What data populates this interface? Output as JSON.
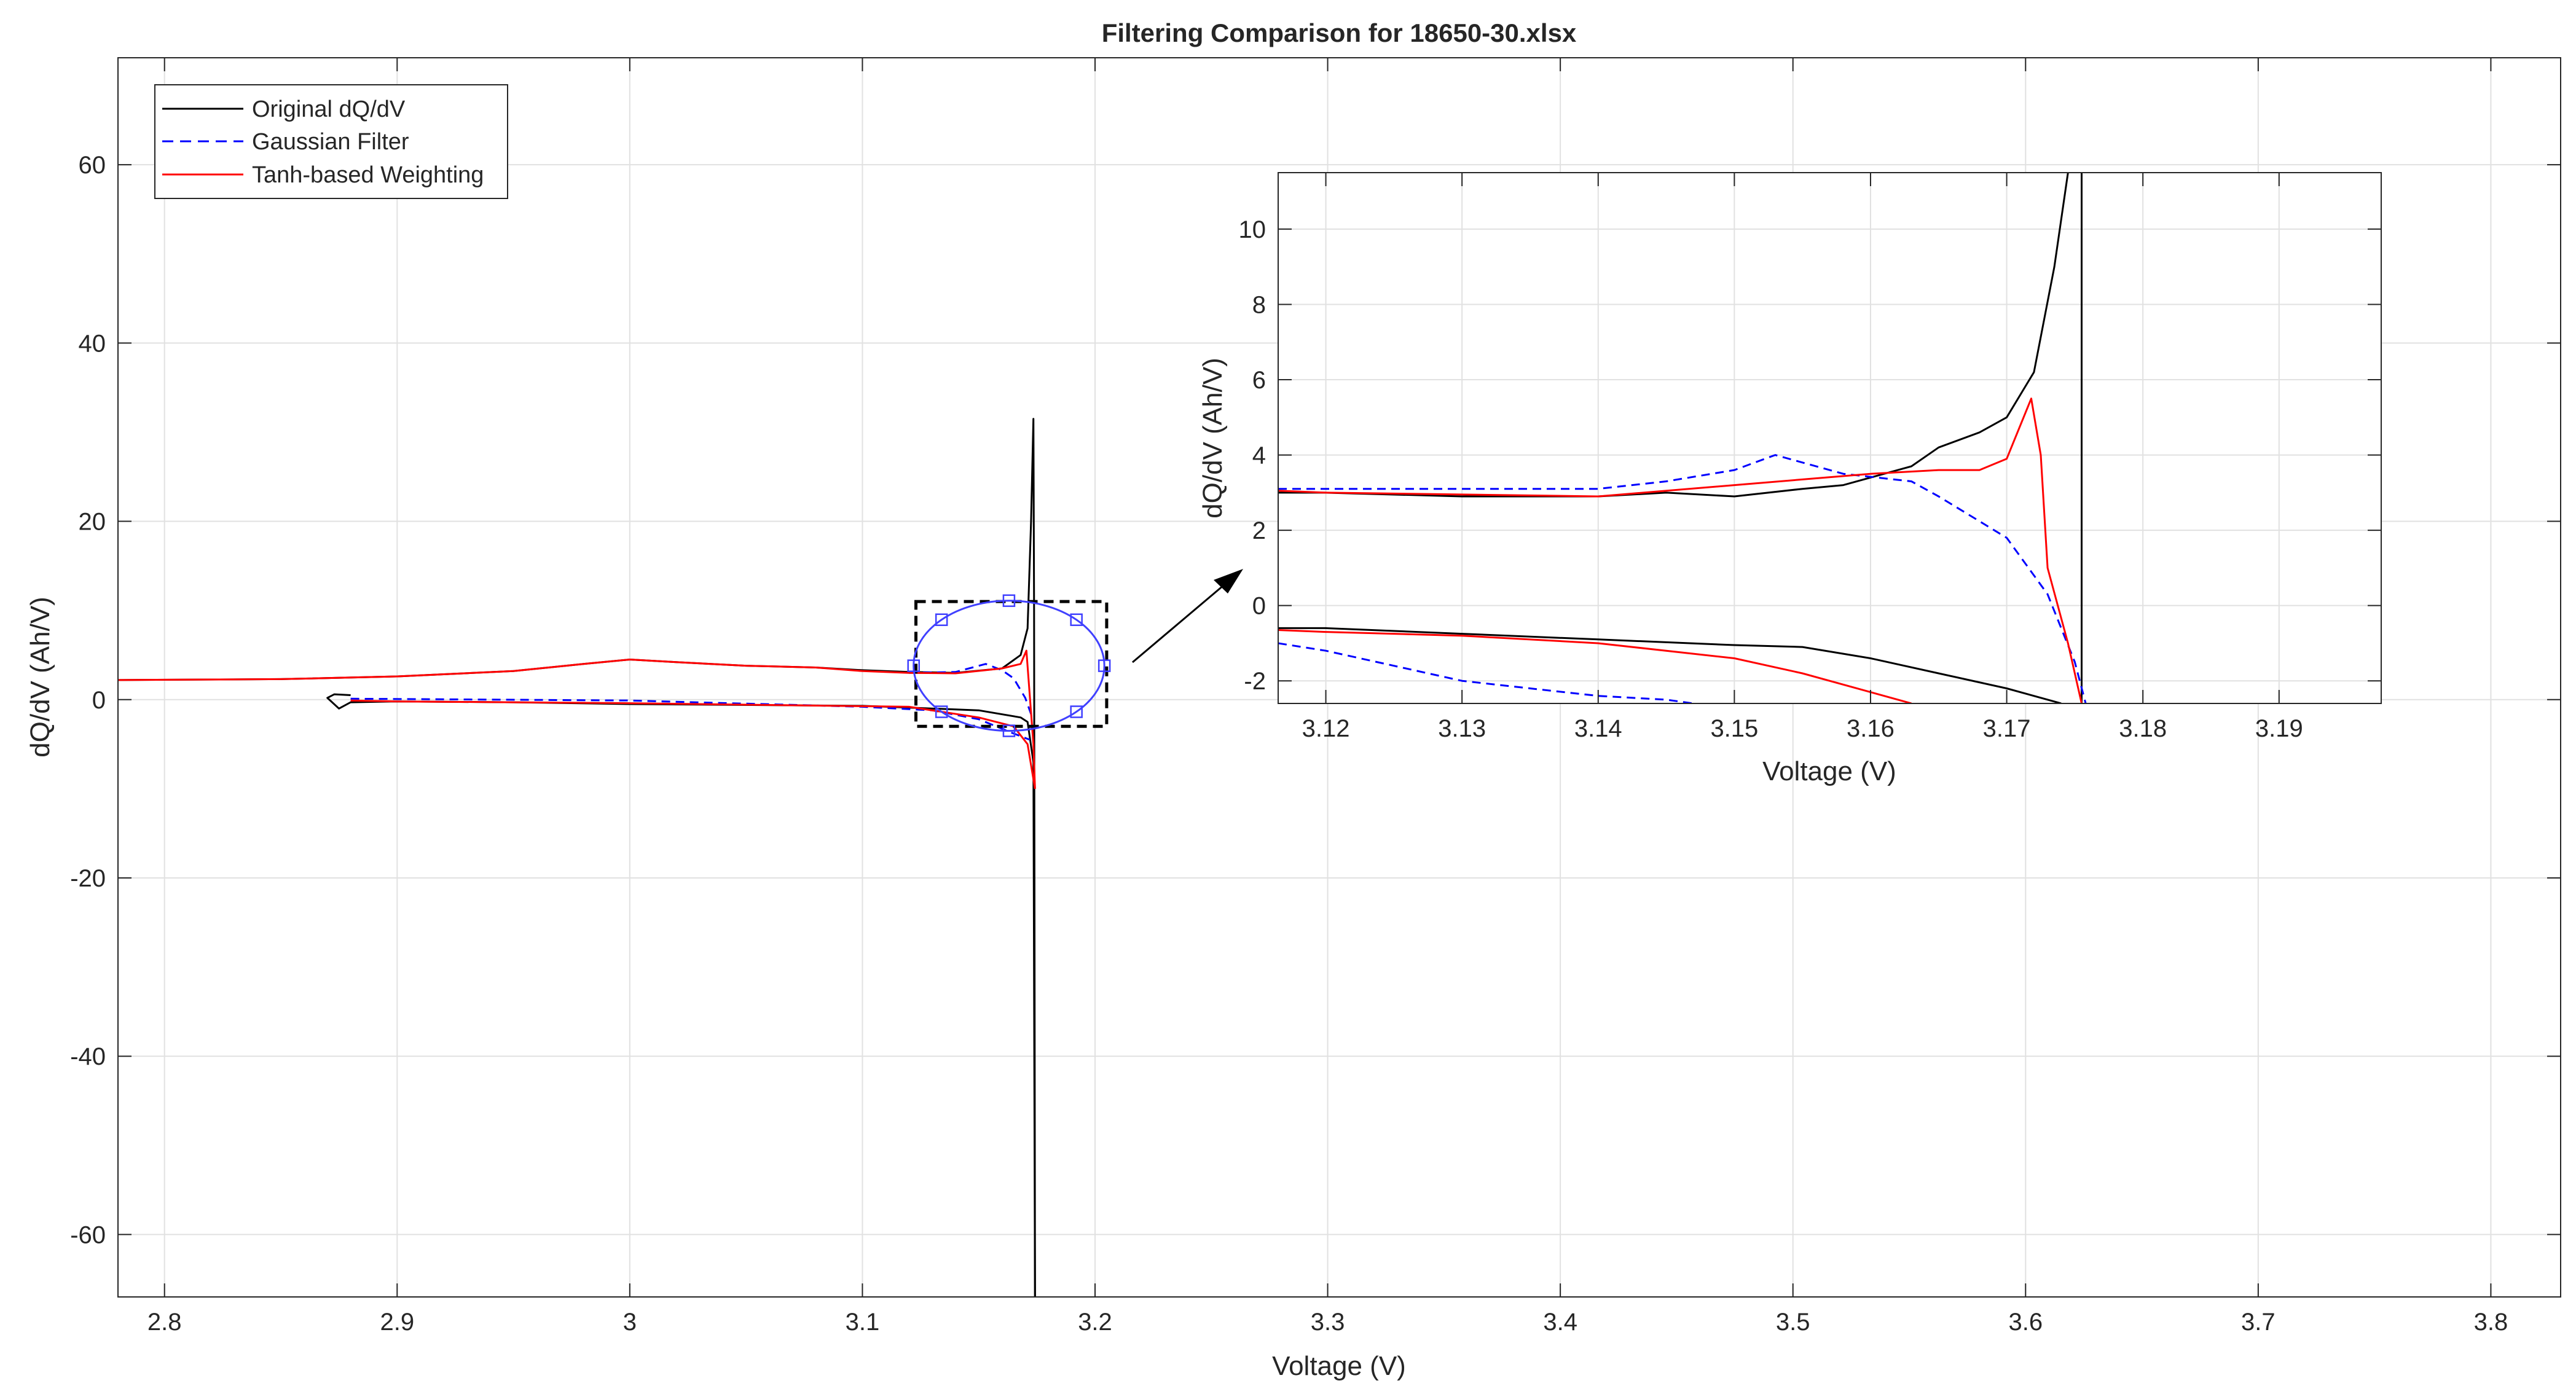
{
  "chart_data": [
    {
      "id": "main",
      "type": "line",
      "title": "Filtering Comparison for 18650-30.xlsx",
      "xlabel": "Voltage (V)",
      "ylabel": "dQ/dV (Ah/V)",
      "xlim": [
        2.78,
        3.83
      ],
      "ylim": [
        -67,
        72
      ],
      "xticks": [
        2.8,
        2.9,
        3,
        3.1,
        3.2,
        3.3,
        3.4,
        3.5,
        3.6,
        3.7,
        3.8
      ],
      "xtick_labels": [
        "2.8",
        "2.9",
        "3",
        "3.1",
        "3.2",
        "3.3",
        "3.4",
        "3.5",
        "3.6",
        "3.7",
        "3.8"
      ],
      "yticks": [
        60,
        40,
        20,
        0,
        -20,
        -40,
        -60
      ],
      "ytick_labels": [
        "60",
        "40",
        "20",
        "0",
        "-20",
        "-40",
        "-60"
      ],
      "grid": true,
      "legend": {
        "position": "top-left",
        "entries": [
          {
            "label": "Original dQ/dV",
            "color": "#000000",
            "style": "solid"
          },
          {
            "label": "Gaussian Filter",
            "color": "#0000ff",
            "style": "dashed"
          },
          {
            "label": "Tanh-based Weighting",
            "color": "#ff0000",
            "style": "solid"
          }
        ]
      },
      "series": [
        {
          "name": "Original dQ/dV",
          "color": "#000000",
          "dash": "none",
          "segments": [
            [
              [
                2.78,
                2.2
              ],
              [
                2.85,
                2.3
              ],
              [
                2.9,
                2.6
              ],
              [
                2.95,
                3.2
              ],
              [
                2.98,
                4.0
              ],
              [
                3.0,
                4.5
              ],
              [
                3.02,
                4.2
              ],
              [
                3.05,
                3.8
              ],
              [
                3.08,
                3.6
              ],
              [
                3.1,
                3.3
              ],
              [
                3.12,
                3.1
              ],
              [
                3.14,
                3.0
              ],
              [
                3.16,
                3.5
              ],
              [
                3.168,
                5.0
              ],
              [
                3.171,
                8.0
              ],
              [
                3.1725,
                20.0
              ],
              [
                3.1735,
                31.5
              ],
              [
                3.1738,
                10.0
              ],
              [
                3.1742,
                -67.0
              ]
            ],
            [
              [
                3.1742,
                -67.0
              ],
              [
                3.1735,
                -7.0
              ],
              [
                3.171,
                -2.5
              ],
              [
                3.168,
                -2.0
              ],
              [
                3.15,
                -1.2
              ],
              [
                3.12,
                -0.9
              ],
              [
                3.1,
                -0.7
              ],
              [
                3.0,
                -0.5
              ],
              [
                2.95,
                -0.3
              ],
              [
                2.9,
                -0.2
              ],
              [
                2.88,
                -0.3
              ],
              [
                2.875,
                -1.0
              ],
              [
                2.87,
                0.2
              ],
              [
                2.873,
                0.6
              ],
              [
                2.88,
                0.5
              ]
            ]
          ]
        },
        {
          "name": "Gaussian Filter",
          "color": "#0000ff",
          "dash": "14,9",
          "segments": [
            [
              [
                2.88,
                0.1
              ],
              [
                3.0,
                -0.1
              ],
              [
                3.1,
                -0.8
              ],
              [
                3.13,
                -1.2
              ],
              [
                3.15,
                -2.2
              ],
              [
                3.165,
                -3.8
              ],
              [
                3.172,
                -4.5
              ]
            ],
            [
              [
                3.12,
                3.0
              ],
              [
                3.14,
                3.1
              ],
              [
                3.153,
                4.0
              ],
              [
                3.16,
                3.3
              ],
              [
                3.165,
                2.4
              ],
              [
                3.17,
                0.2
              ],
              [
                3.173,
                -2.0
              ]
            ]
          ]
        },
        {
          "name": "Tanh-based Weighting",
          "color": "#ff0000",
          "dash": "none",
          "segments": [
            [
              [
                2.78,
                2.2
              ],
              [
                2.85,
                2.3
              ],
              [
                2.9,
                2.6
              ],
              [
                2.95,
                3.2
              ],
              [
                2.98,
                4.0
              ],
              [
                3.0,
                4.5
              ],
              [
                3.02,
                4.2
              ],
              [
                3.05,
                3.8
              ],
              [
                3.08,
                3.6
              ],
              [
                3.1,
                3.2
              ],
              [
                3.12,
                3.0
              ],
              [
                3.14,
                2.95
              ],
              [
                3.16,
                3.5
              ],
              [
                3.168,
                4.0
              ],
              [
                3.1705,
                5.5
              ],
              [
                3.1735,
                -5.0
              ],
              [
                3.1742,
                -10.0
              ]
            ],
            [
              [
                3.1742,
                -10.0
              ],
              [
                3.171,
                -5.0
              ],
              [
                3.165,
                -3.0
              ],
              [
                3.15,
                -2.0
              ],
              [
                3.12,
                -0.8
              ],
              [
                3.0,
                -0.4
              ],
              [
                2.95,
                -0.3
              ],
              [
                2.9,
                -0.2
              ],
              [
                2.88,
                -0.1
              ]
            ]
          ]
        }
      ],
      "annotations": [
        {
          "type": "zoom-rectangle",
          "x_range": [
            3.123,
            3.205
          ],
          "y_range": [
            -3,
            11
          ]
        },
        {
          "type": "ellipse",
          "color": "#4040ff",
          "center": [
            3.163,
            3.8
          ],
          "radii": [
            0.041,
            7.3
          ]
        }
      ]
    },
    {
      "id": "inset",
      "type": "line",
      "xlabel": "Voltage (V)",
      "ylabel": "dQ/dV (Ah/V)",
      "xlim": [
        3.1165,
        3.1975
      ],
      "ylim": [
        -2.6,
        11.5
      ],
      "xticks": [
        3.12,
        3.13,
        3.14,
        3.15,
        3.16,
        3.17,
        3.18,
        3.19
      ],
      "xtick_labels": [
        "3.12",
        "3.13",
        "3.14",
        "3.15",
        "3.16",
        "3.17",
        "3.18",
        "3.19"
      ],
      "yticks": [
        10,
        8,
        6,
        4,
        2,
        0,
        -2
      ],
      "ytick_labels": [
        "10",
        "8",
        "6",
        "4",
        "2",
        "0",
        "-2"
      ],
      "grid": true,
      "series": [
        {
          "name": "Original dQ/dV",
          "color": "#000000",
          "dash": "none",
          "segments": [
            [
              [
                3.1165,
                3.0
              ],
              [
                3.12,
                3.0
              ],
              [
                3.13,
                2.9
              ],
              [
                3.14,
                2.9
              ],
              [
                3.145,
                3.0
              ],
              [
                3.15,
                2.9
              ],
              [
                3.155,
                3.1
              ],
              [
                3.158,
                3.2
              ],
              [
                3.161,
                3.5
              ],
              [
                3.163,
                3.7
              ],
              [
                3.165,
                4.2
              ],
              [
                3.168,
                4.6
              ],
              [
                3.17,
                5.0
              ],
              [
                3.172,
                6.2
              ],
              [
                3.1735,
                9.0
              ],
              [
                3.1745,
                11.5
              ]
            ],
            [
              [
                3.1165,
                -0.6
              ],
              [
                3.12,
                -0.6
              ],
              [
                3.13,
                -0.75
              ],
              [
                3.14,
                -0.9
              ],
              [
                3.15,
                -1.05
              ],
              [
                3.155,
                -1.1
              ],
              [
                3.16,
                -1.4
              ],
              [
                3.165,
                -1.8
              ],
              [
                3.17,
                -2.2
              ],
              [
                3.174,
                -2.6
              ]
            ],
            [
              [
                3.1755,
                11.5
              ],
              [
                3.1755,
                -2.6
              ]
            ]
          ]
        },
        {
          "name": "Gaussian Filter",
          "color": "#0000ff",
          "dash": "14,9",
          "segments": [
            [
              [
                3.1165,
                3.1
              ],
              [
                3.13,
                3.1
              ],
              [
                3.14,
                3.1
              ],
              [
                3.145,
                3.3
              ],
              [
                3.15,
                3.6
              ],
              [
                3.153,
                4.0
              ],
              [
                3.158,
                3.5
              ],
              [
                3.163,
                3.3
              ],
              [
                3.165,
                2.9
              ],
              [
                3.17,
                1.8
              ],
              [
                3.173,
                0.3
              ],
              [
                3.175,
                -1.5
              ],
              [
                3.1758,
                -2.6
              ]
            ],
            [
              [
                3.1165,
                -1.0
              ],
              [
                3.12,
                -1.2
              ],
              [
                3.125,
                -1.6
              ],
              [
                3.13,
                -2.0
              ],
              [
                3.135,
                -2.2
              ],
              [
                3.14,
                -2.4
              ],
              [
                3.145,
                -2.5
              ],
              [
                3.147,
                -2.6
              ]
            ]
          ]
        },
        {
          "name": "Tanh-based Weighting",
          "color": "#ff0000",
          "dash": "none",
          "segments": [
            [
              [
                3.1165,
                3.05
              ],
              [
                3.12,
                3.0
              ],
              [
                3.14,
                2.9
              ],
              [
                3.15,
                3.2
              ],
              [
                3.16,
                3.5
              ],
              [
                3.165,
                3.6
              ],
              [
                3.168,
                3.6
              ],
              [
                3.17,
                3.9
              ],
              [
                3.1718,
                5.5
              ],
              [
                3.1725,
                4.0
              ],
              [
                3.173,
                1.0
              ],
              [
                3.1745,
                -1.0
              ],
              [
                3.1755,
                -2.6
              ]
            ],
            [
              [
                3.1165,
                -0.65
              ],
              [
                3.12,
                -0.7
              ],
              [
                3.13,
                -0.8
              ],
              [
                3.14,
                -1.0
              ],
              [
                3.15,
                -1.4
              ],
              [
                3.155,
                -1.8
              ],
              [
                3.16,
                -2.3
              ],
              [
                3.163,
                -2.6
              ]
            ]
          ]
        }
      ]
    }
  ]
}
